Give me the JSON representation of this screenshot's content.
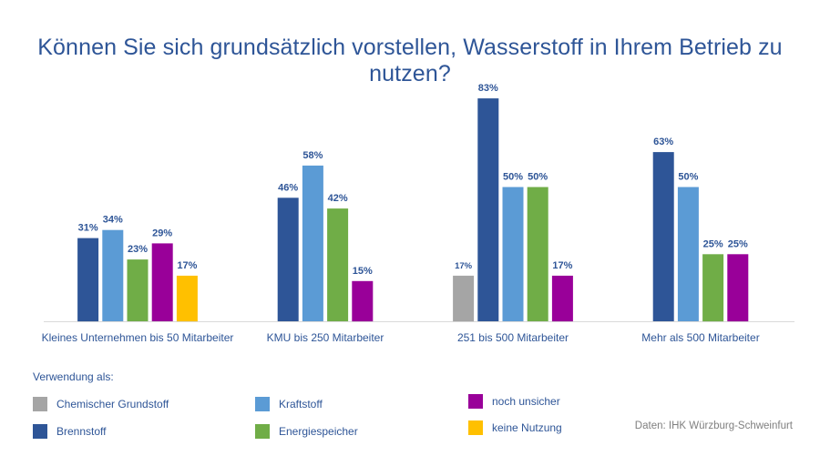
{
  "title": "Können Sie sich grundsätzlich vorstellen, Wasserstoff in Ihrem Betrieb zu nutzen?",
  "source": "Daten: IHK Würzburg-Schweinfurt",
  "legend": {
    "title": "Verwendung als:",
    "items": [
      {
        "label": "Chemischer Grundstoff",
        "color": "#A5A5A5"
      },
      {
        "label": "Brennstoff",
        "color": "#2E5597"
      },
      {
        "label": "Kraftstoff",
        "color": "#5B9BD5"
      },
      {
        "label": "Energiespeicher",
        "color": "#70AD47"
      },
      {
        "label": "noch unsicher",
        "color": "#990099"
      },
      {
        "label": "keine Nutzung",
        "color": "#FFC000"
      }
    ]
  },
  "chart_data": {
    "type": "bar",
    "title": "Können Sie sich grundsätzlich vorstellen, Wasserstoff in Ihrem Betrieb zu nutzen?",
    "unit": "%",
    "ylim": [
      0,
      100
    ],
    "grid": false,
    "legend_position": "bottom",
    "categories": [
      "Kleines Unternehmen bis 50 Mitarbeiter",
      "KMU bis 250 Mitarbeiter",
      "251 bis 500 Mitarbeiter",
      "Mehr als 500 Mitarbeiter"
    ],
    "groups": [
      {
        "bars": [
          {
            "series": "Brennstoff",
            "value": 31,
            "label": "31%"
          },
          {
            "series": "Kraftstoff",
            "value": 34,
            "label": "34%"
          },
          {
            "series": "Energiespeicher",
            "value": 23,
            "label": "23%"
          },
          {
            "series": "noch unsicher",
            "value": 29,
            "label": "29%"
          },
          {
            "series": "keine Nutzung",
            "value": 17,
            "label": "17%"
          }
        ]
      },
      {
        "bars": [
          {
            "series": "Brennstoff",
            "value": 46,
            "label": "46%"
          },
          {
            "series": "Kraftstoff",
            "value": 58,
            "label": "58%"
          },
          {
            "series": "Energiespeicher",
            "value": 42,
            "label": "42%"
          },
          {
            "series": "noch unsicher",
            "value": 15,
            "label": "15%"
          }
        ]
      },
      {
        "bars": [
          {
            "series": "Chemischer Grundstoff",
            "value": 17,
            "label": "17%"
          },
          {
            "series": "Brennstoff",
            "value": 83,
            "label": "83%"
          },
          {
            "series": "Kraftstoff",
            "value": 50,
            "label": "50%"
          },
          {
            "series": "Energiespeicher",
            "value": 50,
            "label": "50%"
          },
          {
            "series": "noch unsicher",
            "value": 17,
            "label": "17%"
          }
        ]
      },
      {
        "bars": [
          {
            "series": "Brennstoff",
            "value": 63,
            "label": "63%"
          },
          {
            "series": "Kraftstoff",
            "value": 50,
            "label": "50%"
          },
          {
            "series": "Energiespeicher",
            "value": 25,
            "label": "25%"
          },
          {
            "series": "noch unsicher",
            "value": 25,
            "label": "25%"
          }
        ]
      }
    ]
  }
}
